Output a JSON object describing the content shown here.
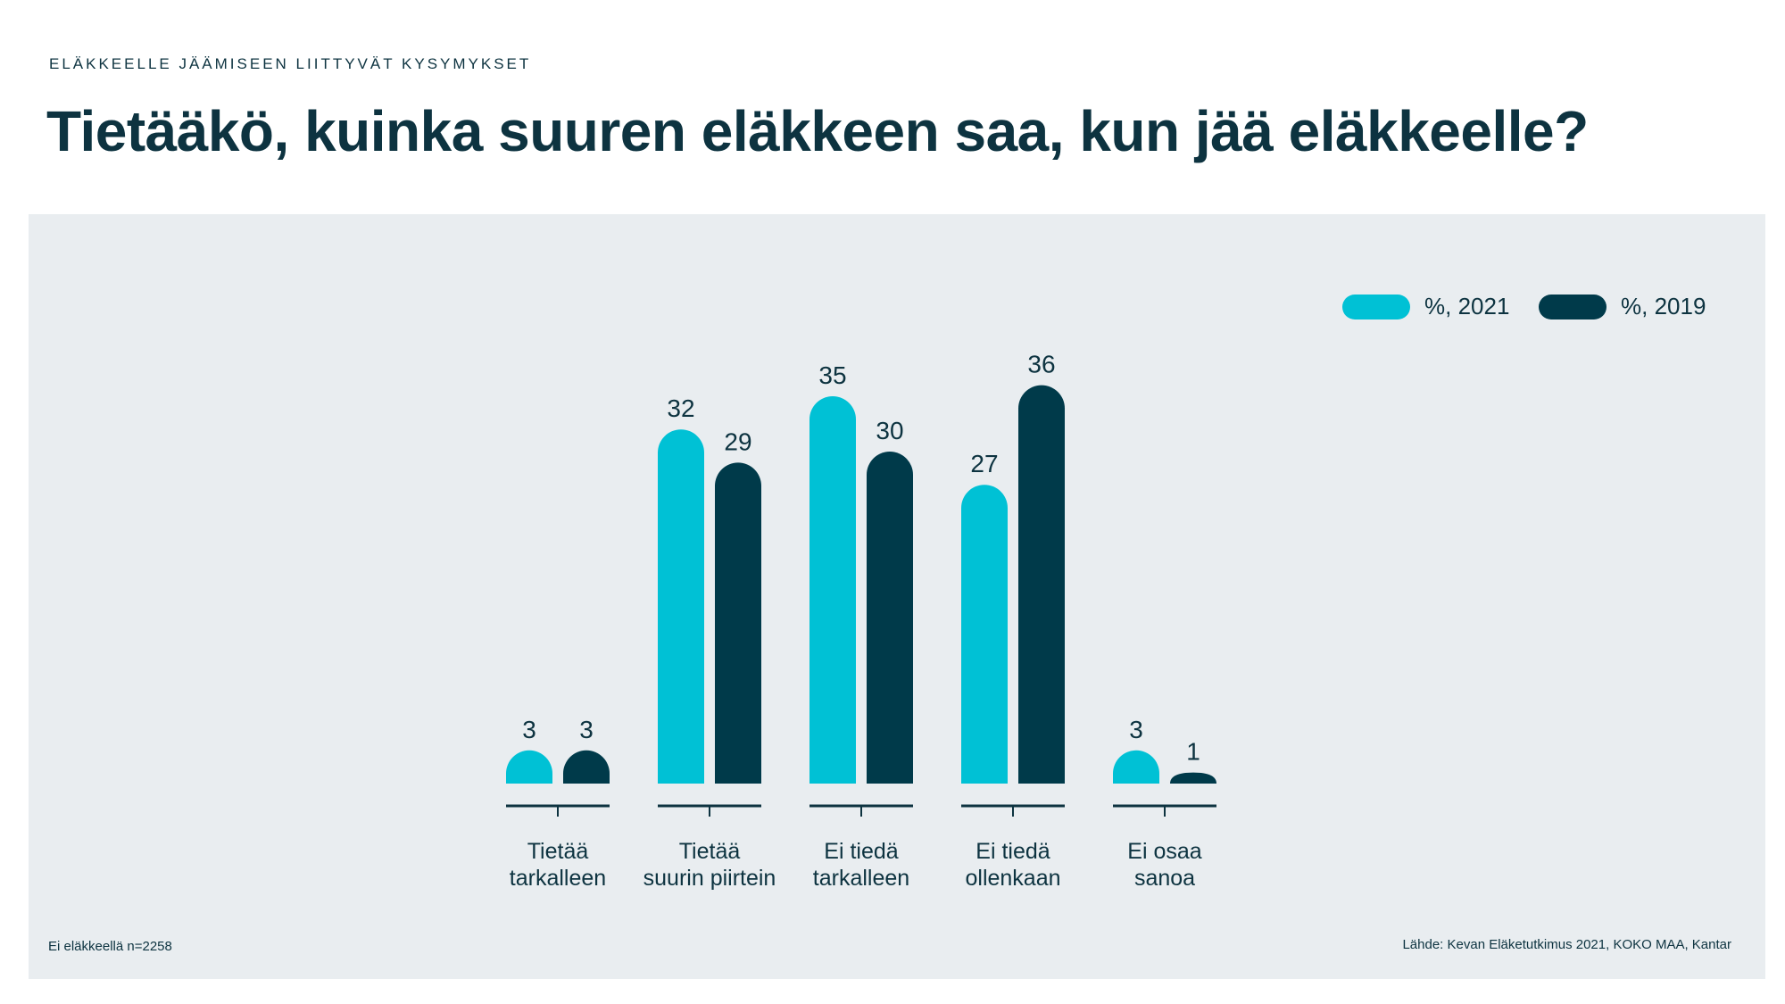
{
  "header": {
    "kicker": "ELÄKKEELLE JÄÄMISEEN LIITTYVÄT KYSYMYKSET",
    "title": "Tietääkö, kuinka suuren eläkkeen saa, kun jää eläkkeelle?"
  },
  "footer": {
    "note": "Ei eläkkeellä n=2258",
    "source": "Lähde: Kevan Eläketutkimus 2021, KOKO MAA, Kantar"
  },
  "colors": {
    "series_2021": "#00c1d5",
    "series_2019": "#003a4a",
    "text": "#0d3340",
    "panel": "#e9edf0"
  },
  "chart_data": {
    "type": "bar",
    "categories": [
      [
        "Tietää",
        "tarkalleen"
      ],
      [
        "Tietää",
        "suurin piirtein"
      ],
      [
        "Ei tiedä",
        "tarkalleen"
      ],
      [
        "Ei tiedä",
        "ollenkaan"
      ],
      [
        "Ei osaa",
        "sanoa"
      ]
    ],
    "series": [
      {
        "name": "%, 2021",
        "values": [
          3,
          32,
          35,
          27,
          3
        ]
      },
      {
        "name": "%, 2019",
        "values": [
          3,
          29,
          30,
          36,
          1
        ]
      }
    ],
    "ylim": [
      0,
      40
    ],
    "grid": false,
    "legend": "top-right"
  }
}
